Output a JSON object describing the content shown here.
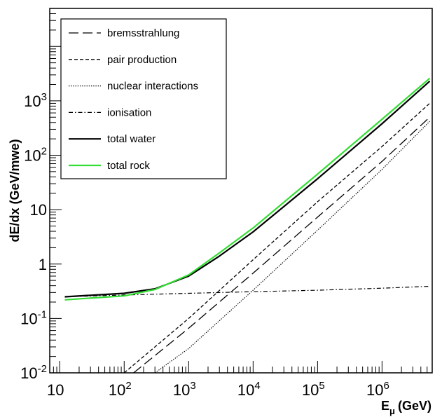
{
  "chart_data": {
    "type": "line",
    "xlabel": "E",
    "xlabel_sub": "μ",
    "xlabel_unit": "(GeV)",
    "ylabel": "dE/dx (GeV/mwe)",
    "xscale": "log",
    "yscale": "log",
    "xlim": [
      7,
      6000000
    ],
    "ylim": [
      0.01,
      50000
    ],
    "x_ticks": [
      {
        "value": 10,
        "base": "10",
        "exp": ""
      },
      {
        "value": 100,
        "base": "10",
        "exp": "2"
      },
      {
        "value": 1000,
        "base": "10",
        "exp": "3"
      },
      {
        "value": 10000,
        "base": "10",
        "exp": "4"
      },
      {
        "value": 100000,
        "base": "10",
        "exp": "5"
      },
      {
        "value": 1000000,
        "base": "10",
        "exp": "6"
      }
    ],
    "y_ticks": [
      {
        "value": 0.01,
        "base": "10",
        "exp": "-2"
      },
      {
        "value": 0.1,
        "base": "10",
        "exp": "-1"
      },
      {
        "value": 1,
        "base": "1",
        "exp": ""
      },
      {
        "value": 10,
        "base": "10",
        "exp": ""
      },
      {
        "value": 100,
        "base": "10",
        "exp": "2"
      },
      {
        "value": 1000,
        "base": "10",
        "exp": "3"
      }
    ],
    "legend_position": "top-left",
    "grid": false,
    "series": [
      {
        "name": "bremsstrahlung",
        "style": "longdash",
        "color": "#000000",
        "x": [
          140,
          1000,
          10000,
          100000,
          1000000,
          5500000
        ],
        "y": [
          0.01,
          0.066,
          0.68,
          7.3,
          77,
          500
        ]
      },
      {
        "name": "pair production",
        "style": "dash",
        "color": "#000000",
        "x": [
          100,
          1000,
          10000,
          100000,
          1000000,
          5500000
        ],
        "y": [
          0.01,
          0.1,
          1.2,
          14,
          145,
          900
        ]
      },
      {
        "name": "nuclear interactions",
        "style": "dot",
        "color": "#000000",
        "x": [
          300,
          1000,
          10000,
          100000,
          1000000,
          5500000
        ],
        "y": [
          0.01,
          0.028,
          0.33,
          4.2,
          55,
          420
        ]
      },
      {
        "name": "ionisation",
        "style": "dashdot",
        "color": "#000000",
        "x": [
          12,
          100,
          1000,
          10000,
          100000,
          1000000,
          5500000
        ],
        "y": [
          0.25,
          0.27,
          0.29,
          0.31,
          0.33,
          0.36,
          0.39
        ]
      },
      {
        "name": "total water",
        "style": "solid",
        "color": "#000000",
        "x": [
          12,
          100,
          300,
          1000,
          3000,
          10000,
          100000,
          1000000,
          5500000
        ],
        "y": [
          0.25,
          0.29,
          0.35,
          0.6,
          1.4,
          3.9,
          37,
          380,
          2300
        ]
      },
      {
        "name": "total rock",
        "style": "solid",
        "color": "#33dd33",
        "x": [
          12,
          100,
          300,
          1000,
          3000,
          10000,
          100000,
          1000000,
          5500000
        ],
        "y": [
          0.22,
          0.26,
          0.34,
          0.63,
          1.6,
          4.6,
          45,
          460,
          2600
        ]
      }
    ]
  }
}
